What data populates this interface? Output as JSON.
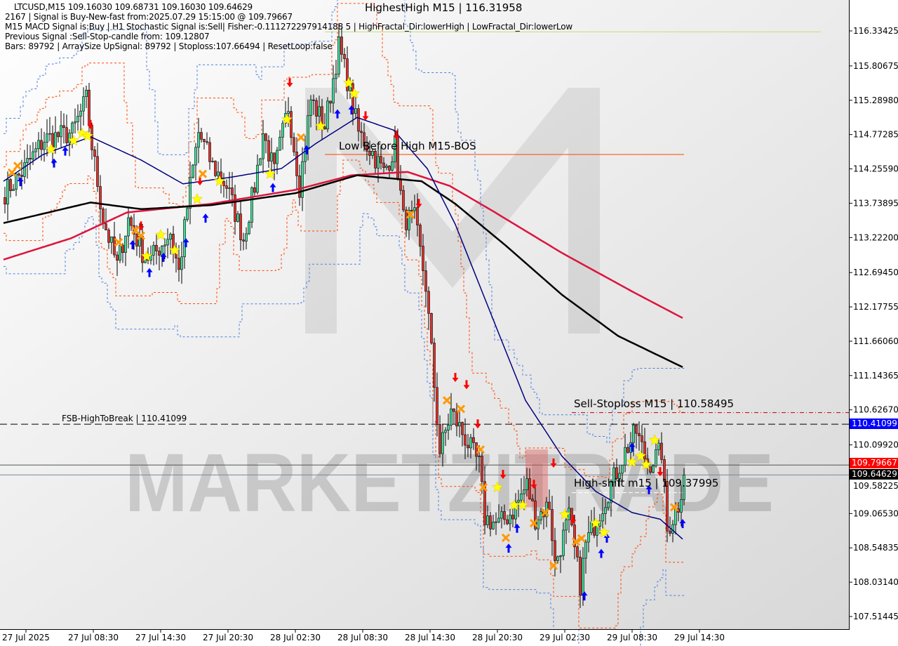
{
  "header": {
    "line1": "LTCUSD,M15  109.16030 109.68731 109.16030 109.64629",
    "line2": "2167 | Signal is Buy-New-fast from:2025.07.29 15:15:00 @ 109.79667",
    "line3": "M15 MACD Signal is:Buy | H1 Stochastic Signal is:Sell| Fisher:-0.111272297914188 5 | HighFractal_Dir:lowerHigh | LowFractal_Dir:lowerLow",
    "line4": "Previous Signal :Sell-Stop-candle from: 109.12807",
    "line5": "Bars: 89792 | ArraySize UpSignal: 89792 | Stoploss:107.66494 | ResetLoop:false"
  },
  "annotations": {
    "highest_high": "HighestHigh   M15 | 116.31958",
    "low_before_high": "Low Before High   M15-BOS",
    "sell_stoploss": "Sell-Stoploss M15 | 110.58495",
    "fsb_high": "FSB-HighToBreak | 110.41099",
    "high_shift": "High-shift m15 | 109.37995"
  },
  "watermark": "MARKETZITRADE",
  "price_tags": {
    "fsb": "110.41099",
    "signal": "109.79667",
    "current": "109.64629"
  },
  "colors": {
    "background": "#ffffff",
    "bull": "#3ddc97",
    "bear": "#e0302a",
    "ma_fast": "#000080",
    "ma_mid": "#000000",
    "ma_slow": "#dc143c",
    "channel_blue": "#4a7fe0",
    "channel_orange": "#ff4500",
    "tag_fsb": "#0000ff",
    "tag_signal": "#ff0000",
    "tag_current": "#000000"
  },
  "chart_data": {
    "type": "candlestick",
    "symbol": "LTCUSD",
    "timeframe": "M15",
    "ylim": [
      107.2,
      116.8
    ],
    "y_ticks": [
      "116.33425",
      "115.80675",
      "115.28980",
      "114.77285",
      "114.25590",
      "113.73895",
      "113.22200",
      "112.69450",
      "112.17755",
      "111.66060",
      "111.14365",
      "110.62670",
      "110.09920",
      "109.58225",
      "109.06530",
      "108.54835",
      "108.03140",
      "107.51445"
    ],
    "x_ticks": [
      "27 Jul 2025",
      "27 Jul 08:30",
      "27 Jul 14:30",
      "27 Jul 20:30",
      "28 Jul 02:30",
      "28 Jul 08:30",
      "28 Jul 14:30",
      "28 Jul 20:30",
      "29 Jul 02:30",
      "29 Jul 08:30",
      "29 Jul 14:30"
    ],
    "bar_count": 243,
    "close_path": [
      [
        0,
        113.9
      ],
      [
        6,
        114.2
      ],
      [
        14,
        114.7
      ],
      [
        24,
        114.8
      ],
      [
        29,
        115.3
      ],
      [
        31,
        114.6
      ],
      [
        35,
        113.5
      ],
      [
        40,
        112.8
      ],
      [
        44,
        113.5
      ],
      [
        49,
        113.0
      ],
      [
        52,
        112.9
      ],
      [
        59,
        113.3
      ],
      [
        62,
        112.7
      ],
      [
        66,
        114.0
      ],
      [
        69,
        114.8
      ],
      [
        74,
        114.3
      ],
      [
        79,
        114.0
      ],
      [
        85,
        113.2
      ],
      [
        89,
        114.0
      ],
      [
        92,
        114.8
      ],
      [
        96,
        114.2
      ],
      [
        101,
        115.2
      ],
      [
        105,
        114.0
      ],
      [
        109,
        115.3
      ],
      [
        114,
        114.9
      ],
      [
        119,
        116.1
      ],
      [
        122,
        115.6
      ],
      [
        126,
        114.8
      ],
      [
        131,
        114.5
      ],
      [
        135,
        114.2
      ],
      [
        139,
        114.6
      ],
      [
        142,
        113.5
      ],
      [
        146,
        113.5
      ],
      [
        150,
        112.5
      ],
      [
        152,
        111.5
      ],
      [
        155,
        110.0
      ],
      [
        159,
        110.6
      ],
      [
        164,
        110.2
      ],
      [
        169,
        109.8
      ],
      [
        171,
        109.0
      ],
      [
        176,
        108.9
      ],
      [
        181,
        109.1
      ],
      [
        186,
        109.5
      ],
      [
        189,
        109.0
      ],
      [
        194,
        109.2
      ],
      [
        196,
        108.3
      ],
      [
        201,
        109.0
      ],
      [
        205,
        108.0
      ],
      [
        207,
        108.6
      ],
      [
        211,
        109.0
      ],
      [
        216,
        109.5
      ],
      [
        221,
        110.0
      ],
      [
        225,
        110.3
      ],
      [
        229,
        109.8
      ],
      [
        234,
        110.0
      ],
      [
        236,
        108.8
      ],
      [
        240,
        109.2
      ],
      [
        242,
        109.65
      ]
    ],
    "ma_slow": [
      [
        0,
        112.89
      ],
      [
        24,
        113.21
      ],
      [
        44,
        113.6
      ],
      [
        74,
        113.73
      ],
      [
        104,
        113.94
      ],
      [
        124,
        114.16
      ],
      [
        144,
        114.21
      ],
      [
        159,
        114.0
      ],
      [
        174,
        113.63
      ],
      [
        199,
        112.99
      ],
      [
        224,
        112.41
      ],
      [
        242,
        112.01
      ]
    ],
    "ma_mid": [
      [
        0,
        113.44
      ],
      [
        31,
        113.75
      ],
      [
        49,
        113.65
      ],
      [
        74,
        113.71
      ],
      [
        104,
        113.89
      ],
      [
        126,
        114.16
      ],
      [
        149,
        114.07
      ],
      [
        161,
        113.73
      ],
      [
        179,
        113.1
      ],
      [
        199,
        112.36
      ],
      [
        219,
        111.74
      ],
      [
        242,
        111.27
      ]
    ],
    "ma_fast": [
      [
        0,
        114.07
      ],
      [
        14,
        114.47
      ],
      [
        31,
        114.74
      ],
      [
        49,
        114.39
      ],
      [
        64,
        114.03
      ],
      [
        81,
        114.13
      ],
      [
        99,
        114.26
      ],
      [
        111,
        114.63
      ],
      [
        126,
        115.03
      ],
      [
        139,
        114.84
      ],
      [
        151,
        114.26
      ],
      [
        161,
        113.42
      ],
      [
        174,
        112.04
      ],
      [
        186,
        110.77
      ],
      [
        199,
        109.93
      ],
      [
        211,
        109.4
      ],
      [
        224,
        109.08
      ],
      [
        234,
        108.98
      ],
      [
        242,
        108.68
      ]
    ],
    "levels": {
      "highest_high": 116.31958,
      "low_before_high": 114.5,
      "sell_stoploss": 110.58495,
      "fsb_high_to_break": 110.41099,
      "signal_price": 109.79667,
      "current_price": 109.64629,
      "high_shift": 109.37995
    },
    "highlight_zone": {
      "from_bar": 186,
      "to_bar": 194,
      "high": 110.03,
      "low": 109.16
    },
    "signals": {
      "sell_arrows": [
        [
          31,
          114.92
        ],
        [
          49,
          113.39
        ],
        [
          70,
          114.07
        ],
        [
          102,
          115.55
        ],
        [
          129,
          115.05
        ],
        [
          140,
          114.76
        ],
        [
          148,
          113.73
        ],
        [
          161,
          111.11
        ],
        [
          165,
          111.0
        ],
        [
          169,
          110.41
        ],
        [
          178,
          109.65
        ],
        [
          189,
          109.5
        ],
        [
          196,
          109.82
        ],
        [
          203,
          108.97
        ],
        [
          234,
          109.69
        ]
      ],
      "buy_arrows": [
        [
          6,
          114.07
        ],
        [
          18,
          114.35
        ],
        [
          22,
          114.53
        ],
        [
          46,
          113.12
        ],
        [
          52,
          112.7
        ],
        [
          57,
          112.93
        ],
        [
          65,
          113.15
        ],
        [
          72,
          113.52
        ],
        [
          96,
          113.98
        ],
        [
          108,
          114.55
        ],
        [
          119,
          115.09
        ],
        [
          124,
          115.15
        ],
        [
          183,
          108.85
        ],
        [
          180,
          108.55
        ],
        [
          213,
          108.47
        ],
        [
          215,
          108.7
        ],
        [
          224,
          110.07
        ],
        [
          230,
          109.43
        ],
        [
          242,
          108.92
        ],
        [
          207,
          107.83
        ]
      ],
      "stars": [
        [
          17,
          114.55
        ],
        [
          25,
          114.68
        ],
        [
          28,
          114.79
        ],
        [
          30,
          114.75
        ],
        [
          51,
          112.94
        ],
        [
          56,
          113.26
        ],
        [
          61,
          113.03
        ],
        [
          69,
          113.8
        ],
        [
          77,
          114.07
        ],
        [
          95,
          114.18
        ],
        [
          101,
          115.0
        ],
        [
          113,
          114.9
        ],
        [
          123,
          115.55
        ],
        [
          125,
          115.39
        ],
        [
          176,
          109.46
        ],
        [
          182,
          109.19
        ],
        [
          185,
          109.19
        ],
        [
          200,
          109.05
        ],
        [
          211,
          108.92
        ],
        [
          214,
          108.78
        ],
        [
          224,
          109.84
        ],
        [
          227,
          109.93
        ],
        [
          229,
          109.8
        ],
        [
          232,
          110.17
        ]
      ],
      "crosses": [
        [
          3,
          114.2
        ],
        [
          5,
          114.3
        ],
        [
          41,
          113.15
        ],
        [
          47,
          113.33
        ],
        [
          49,
          113.25
        ],
        [
          71,
          114.18
        ],
        [
          106,
          114.73
        ],
        [
          145,
          113.57
        ],
        [
          158,
          110.77
        ],
        [
          163,
          110.64
        ],
        [
          170,
          110.03
        ],
        [
          171,
          109.46
        ],
        [
          179,
          108.7
        ],
        [
          189,
          108.92
        ],
        [
          193,
          109.08
        ],
        [
          196,
          108.28
        ],
        [
          204,
          108.64
        ],
        [
          206,
          108.69
        ],
        [
          239,
          109.16
        ]
      ]
    }
  }
}
